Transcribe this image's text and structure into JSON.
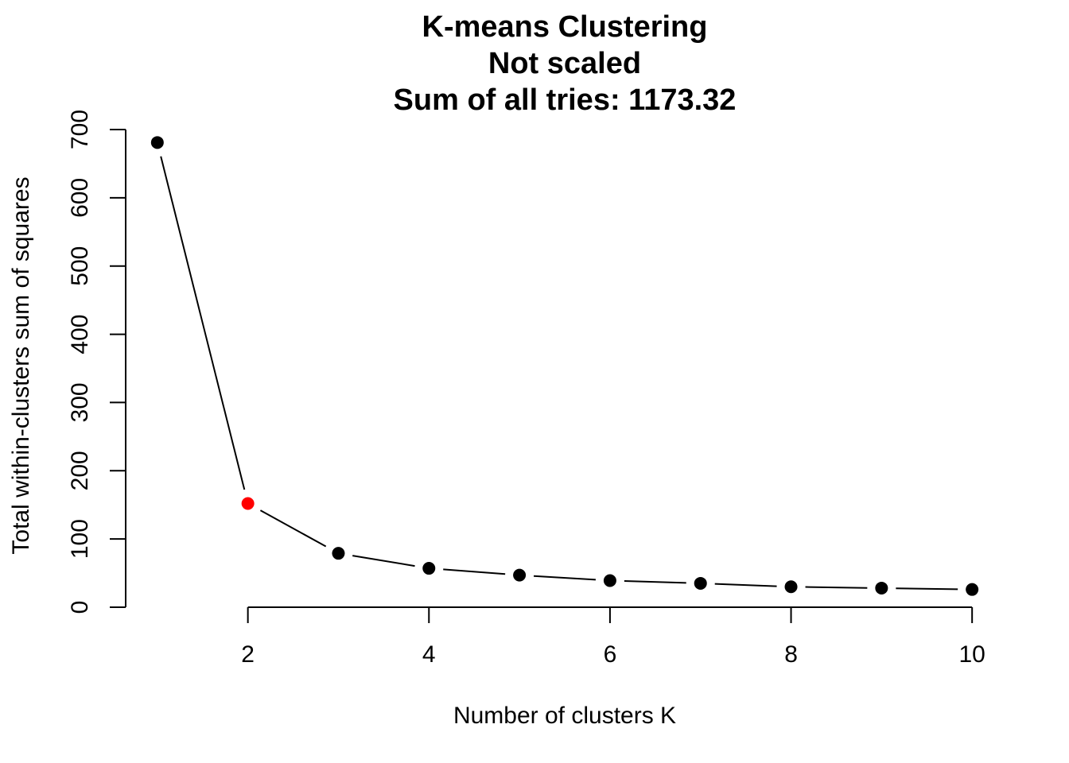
{
  "chart_data": {
    "type": "line",
    "title_lines": [
      "K-means Clustering",
      "Not scaled",
      "Sum of all tries: 1173.32"
    ],
    "xlabel": "Number of clusters K",
    "ylabel": "Total within-clusters sum of squares",
    "x": [
      1,
      2,
      3,
      4,
      5,
      6,
      7,
      8,
      9,
      10
    ],
    "series": [
      {
        "values": [
          681,
          152,
          79,
          57,
          47,
          39,
          35,
          30,
          28,
          26
        ],
        "point_color": "#000000"
      }
    ],
    "highlight": {
      "x": 2,
      "color": "#ff0000"
    },
    "xlim": [
      0.65,
      10.35
    ],
    "ylim": [
      0,
      700
    ],
    "x_ticks": [
      2,
      4,
      6,
      8,
      10
    ],
    "y_ticks": [
      0,
      100,
      200,
      300,
      400,
      500,
      600,
      700
    ],
    "grid": false,
    "legend": "none"
  }
}
